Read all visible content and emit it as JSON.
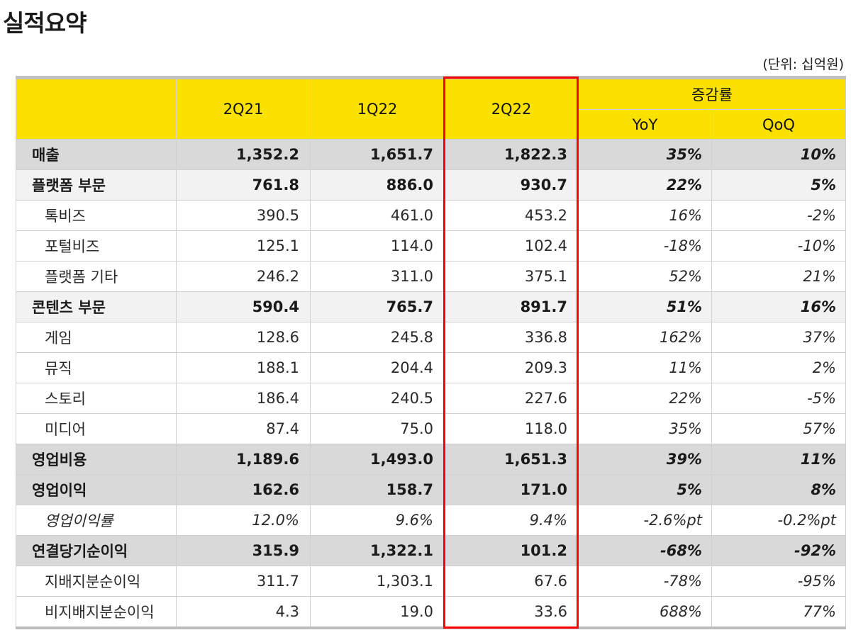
{
  "page": {
    "title": "실적요약",
    "unit": "(단위: 십억원)"
  },
  "table": {
    "headers": {
      "col1": "2Q21",
      "col2": "1Q22",
      "col3": "2Q22",
      "growth_group": "증감률",
      "yoy": "YoY",
      "qoq": "QoQ"
    },
    "rows": [
      {
        "label": "매출",
        "type": "major",
        "q2_21": "1,352.2",
        "q1_22": "1,651.7",
        "q2_22": "1,822.3",
        "yoy": "35%",
        "qoq": "10%"
      },
      {
        "label": "플랫폼 부문",
        "type": "seg",
        "q2_21": "761.8",
        "q1_22": "886.0",
        "q2_22": "930.7",
        "yoy": "22%",
        "qoq": "5%"
      },
      {
        "label": "톡비즈",
        "type": "minor",
        "q2_21": "390.5",
        "q1_22": "461.0",
        "q2_22": "453.2",
        "yoy": "16%",
        "qoq": "-2%"
      },
      {
        "label": "포털비즈",
        "type": "minor",
        "q2_21": "125.1",
        "q1_22": "114.0",
        "q2_22": "102.4",
        "yoy": "-18%",
        "qoq": "-10%"
      },
      {
        "label": "플랫폼 기타",
        "type": "minor",
        "q2_21": "246.2",
        "q1_22": "311.0",
        "q2_22": "375.1",
        "yoy": "52%",
        "qoq": "21%"
      },
      {
        "label": "콘텐츠 부문",
        "type": "seg",
        "q2_21": "590.4",
        "q1_22": "765.7",
        "q2_22": "891.7",
        "yoy": "51%",
        "qoq": "16%"
      },
      {
        "label": "게임",
        "type": "minor",
        "q2_21": "128.6",
        "q1_22": "245.8",
        "q2_22": "336.8",
        "yoy": "162%",
        "qoq": "37%"
      },
      {
        "label": "뮤직",
        "type": "minor",
        "q2_21": "188.1",
        "q1_22": "204.4",
        "q2_22": "209.3",
        "yoy": "11%",
        "qoq": "2%"
      },
      {
        "label": "스토리",
        "type": "minor",
        "q2_21": "186.4",
        "q1_22": "240.5",
        "q2_22": "227.6",
        "yoy": "22%",
        "qoq": "-5%"
      },
      {
        "label": "미디어",
        "type": "minor",
        "q2_21": "87.4",
        "q1_22": "75.0",
        "q2_22": "118.0",
        "yoy": "35%",
        "qoq": "57%"
      },
      {
        "label": "영업비용",
        "type": "major",
        "q2_21": "1,189.6",
        "q1_22": "1,493.0",
        "q2_22": "1,651.3",
        "yoy": "39%",
        "qoq": "11%"
      },
      {
        "label": "영업이익",
        "type": "major",
        "q2_21": "162.6",
        "q1_22": "158.7",
        "q2_22": "171.0",
        "yoy": "5%",
        "qoq": "8%"
      },
      {
        "label": "영업이익률",
        "type": "ratio",
        "q2_21": "12.0%",
        "q1_22": "9.6%",
        "q2_22": "9.4%",
        "yoy": "-2.6%pt",
        "qoq": "-0.2%pt"
      },
      {
        "label": "연결당기순이익",
        "type": "major",
        "q2_21": "315.9",
        "q1_22": "1,322.1",
        "q2_22": "101.2",
        "yoy": "-68%",
        "qoq": "-92%"
      },
      {
        "label": "지배지분순이익",
        "type": "minor",
        "q2_21": "311.7",
        "q1_22": "1,303.1",
        "q2_22": "67.6",
        "yoy": "-78%",
        "qoq": "-95%"
      },
      {
        "label": "비지배지분순이익",
        "type": "minor",
        "q2_21": "4.3",
        "q1_22": "19.0",
        "q2_22": "33.6",
        "yoy": "688%",
        "qoq": "77%"
      }
    ]
  },
  "colors": {
    "header_bg": "#fae100",
    "major_row_bg": "#d9d9d9",
    "segment_row_bg": "#f2f2f2",
    "highlight_border": "#ff0000"
  }
}
